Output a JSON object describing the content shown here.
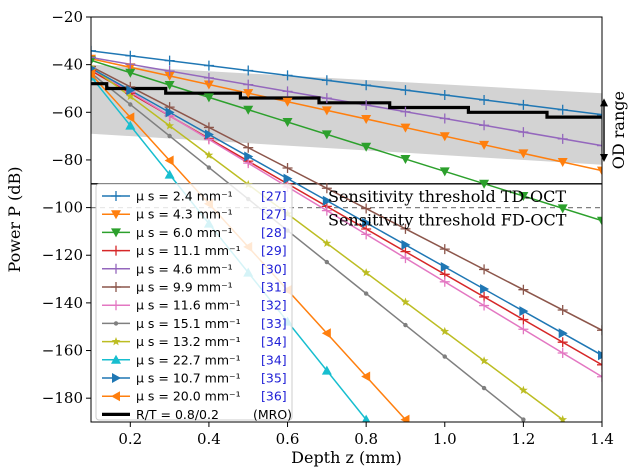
{
  "chart_data": {
    "type": "line",
    "xlabel": "Depth z (mm)",
    "ylabel": "Power P (dB)",
    "xlim": [
      0.1,
      1.4
    ],
    "ylim": [
      -190,
      -20
    ],
    "xticks": [
      0.2,
      0.4,
      0.6,
      0.8,
      1.0,
      1.2,
      1.4
    ],
    "xtick_labels": [
      "0.2",
      "0.4",
      "0.6",
      "0.8",
      "1.0",
      "1.2",
      "1.4"
    ],
    "yticks": [
      -180,
      -160,
      -140,
      -120,
      -100,
      -80,
      -60,
      -40,
      -20
    ],
    "ytick_labels": [
      "−180",
      "−160",
      "−140",
      "−120",
      "−100",
      "−80",
      "−60",
      "−40",
      "−20"
    ],
    "grid": false,
    "legend_position": "lower-left",
    "series": [
      {
        "name": "μ s =    2.4 mm⁻¹",
        "ref": "[27]",
        "color": "#1f77b4",
        "marker": "plus",
        "start": [
          0.1,
          -34.2
        ],
        "end": [
          1.4,
          -61.0
        ]
      },
      {
        "name": "μ s =    4.3 mm⁻¹",
        "ref": "[27]",
        "color": "#ff7f0e",
        "marker": "tri-down",
        "start": [
          0.1,
          -37.5
        ],
        "end": [
          1.4,
          -84.5
        ]
      },
      {
        "name": "μ s =    6.0 mm⁻¹",
        "ref": "[28]",
        "color": "#2ca02c",
        "marker": "tri-down",
        "start": [
          0.1,
          -38.2
        ],
        "end": [
          1.4,
          -105.5
        ]
      },
      {
        "name": "μ s =  11.1 mm⁻¹",
        "ref": "[29]",
        "color": "#d62728",
        "marker": "plus",
        "start": [
          0.1,
          -42.5
        ],
        "end": [
          1.4,
          -166.0
        ]
      },
      {
        "name": "μ s =    4.6 mm⁻¹",
        "ref": "[30]",
        "color": "#9467bd",
        "marker": "plus",
        "start": [
          0.1,
          -37.0
        ],
        "end": [
          1.4,
          -74.0
        ]
      },
      {
        "name": "μ s =    9.9 mm⁻¹",
        "ref": "[31]",
        "color": "#8c564b",
        "marker": "plus",
        "start": [
          0.1,
          -40.8
        ],
        "end": [
          1.4,
          -151.5
        ]
      },
      {
        "name": "μ s =  11.6 mm⁻¹",
        "ref": "[32]",
        "color": "#e377c2",
        "marker": "plus",
        "start": [
          0.1,
          -41.5
        ],
        "end": [
          1.4,
          -171.0
        ]
      },
      {
        "name": "μ s =  15.1 mm⁻¹",
        "ref": "[33]",
        "color": "#7f7f7f",
        "marker": "dot",
        "start": [
          0.1,
          -43.5
        ],
        "end": [
          1.2,
          -189.0
        ]
      },
      {
        "name": "μ s =  13.2 mm⁻¹",
        "ref": "[34]",
        "color": "#bcbd22",
        "marker": "star",
        "start": [
          0.1,
          -41.0
        ],
        "end": [
          1.3,
          -189.0
        ]
      },
      {
        "name": "μ s =  22.7 mm⁻¹",
        "ref": "[34]",
        "color": "#17becf",
        "marker": "tri-up",
        "start": [
          0.1,
          -45.0
        ],
        "end": [
          0.8,
          -189.0
        ]
      },
      {
        "name": "μ s =  10.7 mm⁻¹",
        "ref": "[35]",
        "color": "#1f77b4",
        "marker": "tri-right",
        "start": [
          0.1,
          -41.5
        ],
        "end": [
          1.4,
          -162.0
        ]
      },
      {
        "name": "μ s =  20.0 mm⁻¹",
        "ref": "[36]",
        "color": "#ff7f0e",
        "marker": "tri-left",
        "start": [
          0.1,
          -44.0
        ],
        "end": [
          0.9,
          -189.0
        ]
      }
    ],
    "rt_series": {
      "name": "R/T =    0.8/0.2",
      "note": "(MRO)",
      "color": "#000000",
      "steps": [
        [
          0.1,
          -48
        ],
        [
          0.14,
          -48
        ],
        [
          0.14,
          -50
        ],
        [
          0.29,
          -50
        ],
        [
          0.29,
          -52
        ],
        [
          0.48,
          -52
        ],
        [
          0.48,
          -54
        ],
        [
          0.68,
          -54
        ],
        [
          0.68,
          -56
        ],
        [
          0.86,
          -56
        ],
        [
          0.86,
          -58
        ],
        [
          1.06,
          -58
        ],
        [
          1.06,
          -60
        ],
        [
          1.26,
          -60
        ],
        [
          1.26,
          -62
        ],
        [
          1.4,
          -62
        ]
      ]
    },
    "od_band": {
      "upper": [
        [
          0.1,
          -40.0
        ],
        [
          1.4,
          -52.0
        ]
      ],
      "lower": [
        [
          0.1,
          -69.0
        ],
        [
          1.4,
          -82.0
        ]
      ],
      "color": "#d3d3d3"
    },
    "od_range_label": "OD range",
    "thresholds": [
      {
        "label": "Sensitivity threshold TD-OCT",
        "y": -90,
        "style": "solid",
        "color": "#000000"
      },
      {
        "label": "Sensitivity threshold FD-OCT",
        "y": -100,
        "style": "dashed",
        "color": "#808080"
      }
    ]
  }
}
